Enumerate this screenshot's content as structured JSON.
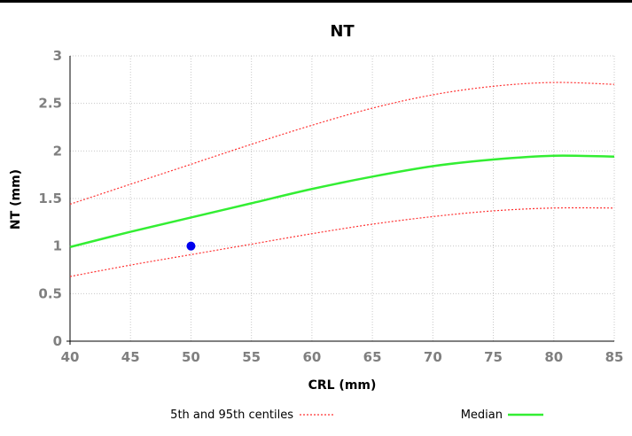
{
  "chart_data": {
    "type": "line",
    "title": "NT",
    "xlabel": "CRL (mm)",
    "ylabel": "NT (mm)",
    "xlim": [
      40,
      85
    ],
    "ylim": [
      0,
      3
    ],
    "xticks": [
      40,
      45,
      50,
      55,
      60,
      65,
      70,
      75,
      80,
      85
    ],
    "yticks": [
      0,
      0.5,
      1,
      1.5,
      2,
      2.5,
      3
    ],
    "ytick_labels": [
      "0",
      "0.5",
      "1",
      "1.5",
      "2",
      "2.5",
      "3"
    ],
    "grid": true,
    "legend_placement": "bottom",
    "x": [
      40,
      45,
      50,
      55,
      60,
      65,
      70,
      75,
      80,
      85
    ],
    "series": [
      {
        "name": "5th and 95th centiles",
        "role": "upper",
        "style": "dotted",
        "color": "#ff3333",
        "values": [
          1.44,
          1.65,
          1.86,
          2.07,
          2.27,
          2.45,
          2.59,
          2.68,
          2.72,
          2.7
        ]
      },
      {
        "name": "Median",
        "style": "solid",
        "color": "#33ee33",
        "values": [
          0.99,
          1.15,
          1.3,
          1.45,
          1.6,
          1.73,
          1.84,
          1.91,
          1.95,
          1.94
        ]
      },
      {
        "name": "5th and 95th centiles",
        "role": "lower",
        "style": "dotted",
        "color": "#ff3333",
        "values": [
          0.68,
          0.8,
          0.91,
          1.02,
          1.13,
          1.23,
          1.31,
          1.37,
          1.4,
          1.4
        ]
      }
    ],
    "points": [
      {
        "x": 50,
        "y": 1.0,
        "color": "#0000ee"
      }
    ],
    "legend": [
      {
        "label": "5th and 95th centiles",
        "style": "dotted",
        "color": "#ff3333"
      },
      {
        "label": "Median",
        "style": "solid",
        "color": "#33ee33"
      }
    ]
  }
}
